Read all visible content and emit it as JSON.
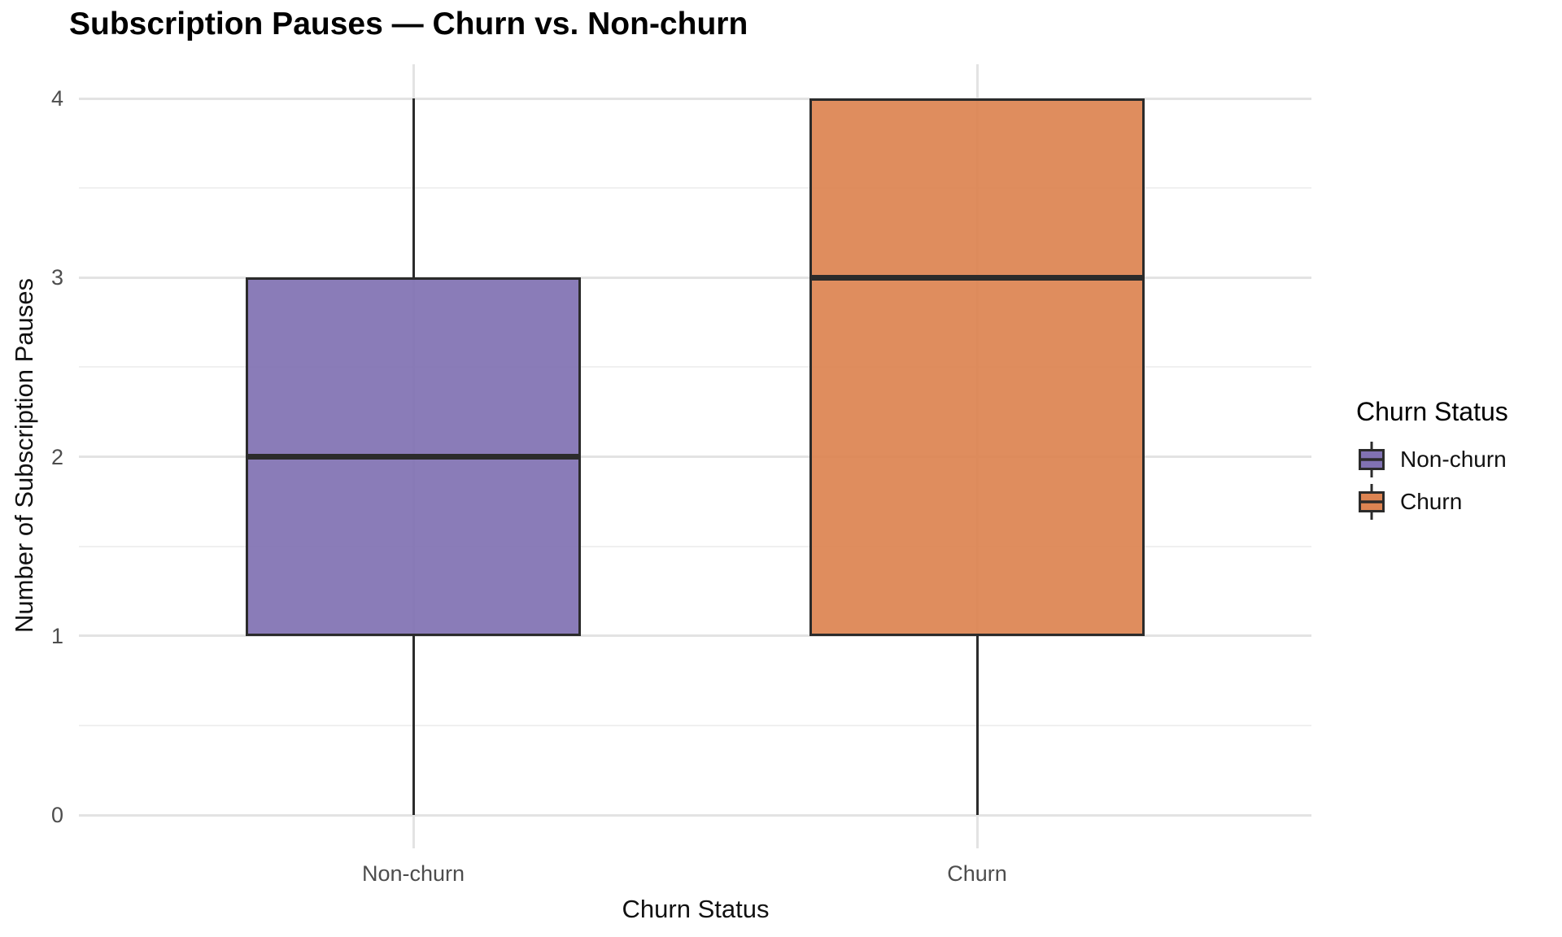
{
  "chart_data": {
    "type": "boxplot",
    "title": "Subscription Pauses — Churn vs. Non-churn",
    "xlabel": "Churn Status",
    "ylabel": "Number of Subscription Pauses",
    "categories": [
      "Non-churn",
      "Churn"
    ],
    "series": [
      {
        "name": "Non-churn",
        "color": "#8172b3",
        "whisker_low": 0,
        "q1": 1,
        "median": 2,
        "q3": 3,
        "whisker_high": 4
      },
      {
        "name": "Churn",
        "color": "#dd8452",
        "whisker_low": 0,
        "q1": 1,
        "median": 3,
        "q3": 4,
        "whisker_high": 4
      }
    ],
    "ylim": [
      0,
      4
    ],
    "yticks": [
      "0",
      "1",
      "2",
      "3",
      "4"
    ],
    "ytick_values": [
      0,
      1,
      2,
      3,
      4
    ],
    "minor_ytick_values": [
      0.5,
      1.5,
      2.5,
      3.5
    ],
    "grid": "horizontal major+minor gridlines, vertical major gridline per category, no axis lines, white background",
    "legend": {
      "title": "Churn Status",
      "position": "right",
      "entries": [
        {
          "label": "Non-churn",
          "color": "#8172b3"
        },
        {
          "label": "Churn",
          "color": "#dd8452"
        }
      ]
    },
    "style": {
      "box_edge_color": "#2b2b2b",
      "grid_major_color": "#e3e3e3",
      "grid_minor_color": "#f0f0f0",
      "tick_label_color": "#4d4d4d"
    }
  }
}
